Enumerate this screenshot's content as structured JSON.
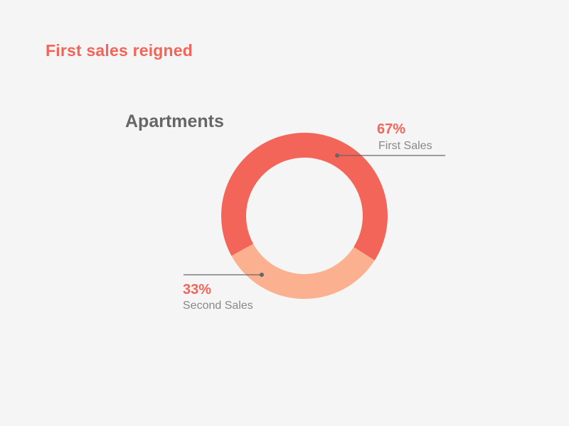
{
  "headline": "First sales reigned",
  "colors": {
    "accent": "#f26558",
    "primary_slice": "#f26558",
    "secondary_slice": "#fbb190",
    "title": "#666666",
    "category_text": "#888888",
    "leader": "#666666",
    "background": "#f5f5f5"
  },
  "chart_data": {
    "type": "pie",
    "variant": "donut",
    "title": "Apartments",
    "grid": false,
    "slices": [
      {
        "label": "First Sales",
        "value": 67,
        "display": "67%",
        "color": "#f26558"
      },
      {
        "label": "Second Sales",
        "value": 33,
        "display": "33%",
        "color": "#fbb190"
      }
    ]
  }
}
